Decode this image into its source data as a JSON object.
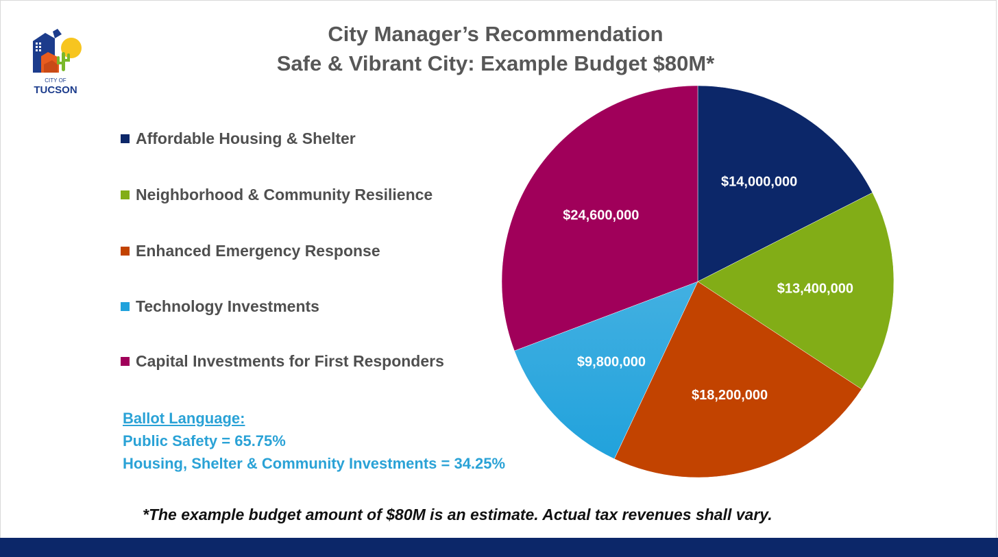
{
  "title": {
    "line1": "City Manager’s Recommendation",
    "line2": "Safe & Vibrant City: Example Budget $80M*"
  },
  "logo": {
    "top_text": "CITY OF",
    "name": "TUCSON",
    "colors": {
      "navy": "#1c3c8c",
      "orange": "#e85c1e",
      "yellow": "#f7c51f",
      "green": "#7ab829"
    }
  },
  "chart_data": {
    "type": "pie",
    "categories": [
      "Affordable Housing & Shelter",
      "Neighborhood & Community Resilience",
      "Enhanced Emergency Response",
      "Technology Investments",
      "Capital Investments for First Responders"
    ],
    "values": [
      14000000,
      13400000,
      18200000,
      9800000,
      24600000
    ],
    "data_labels": [
      "$14,000,000",
      "$13,400,000",
      "$18,200,000",
      "$9,800,000",
      "$24,600,000"
    ],
    "colors": [
      "#0c2769",
      "#82ad17",
      "#c24300",
      "#21a2dc",
      "#a0005a"
    ],
    "start_angle_deg": 0,
    "direction": "clockwise",
    "legend_position": "left"
  },
  "ballot": {
    "heading": "Ballot Language:",
    "line1": "Public Safety = 65.75%",
    "line2": "Housing, Shelter & Community Investments = 34.25%"
  },
  "footnote": "*The example budget amount of $80M is an estimate. Actual tax revenues shall vary.",
  "theme": {
    "bar_color": "#0c2769",
    "title_color": "#575757",
    "ballot_color": "#2aa2d6"
  }
}
